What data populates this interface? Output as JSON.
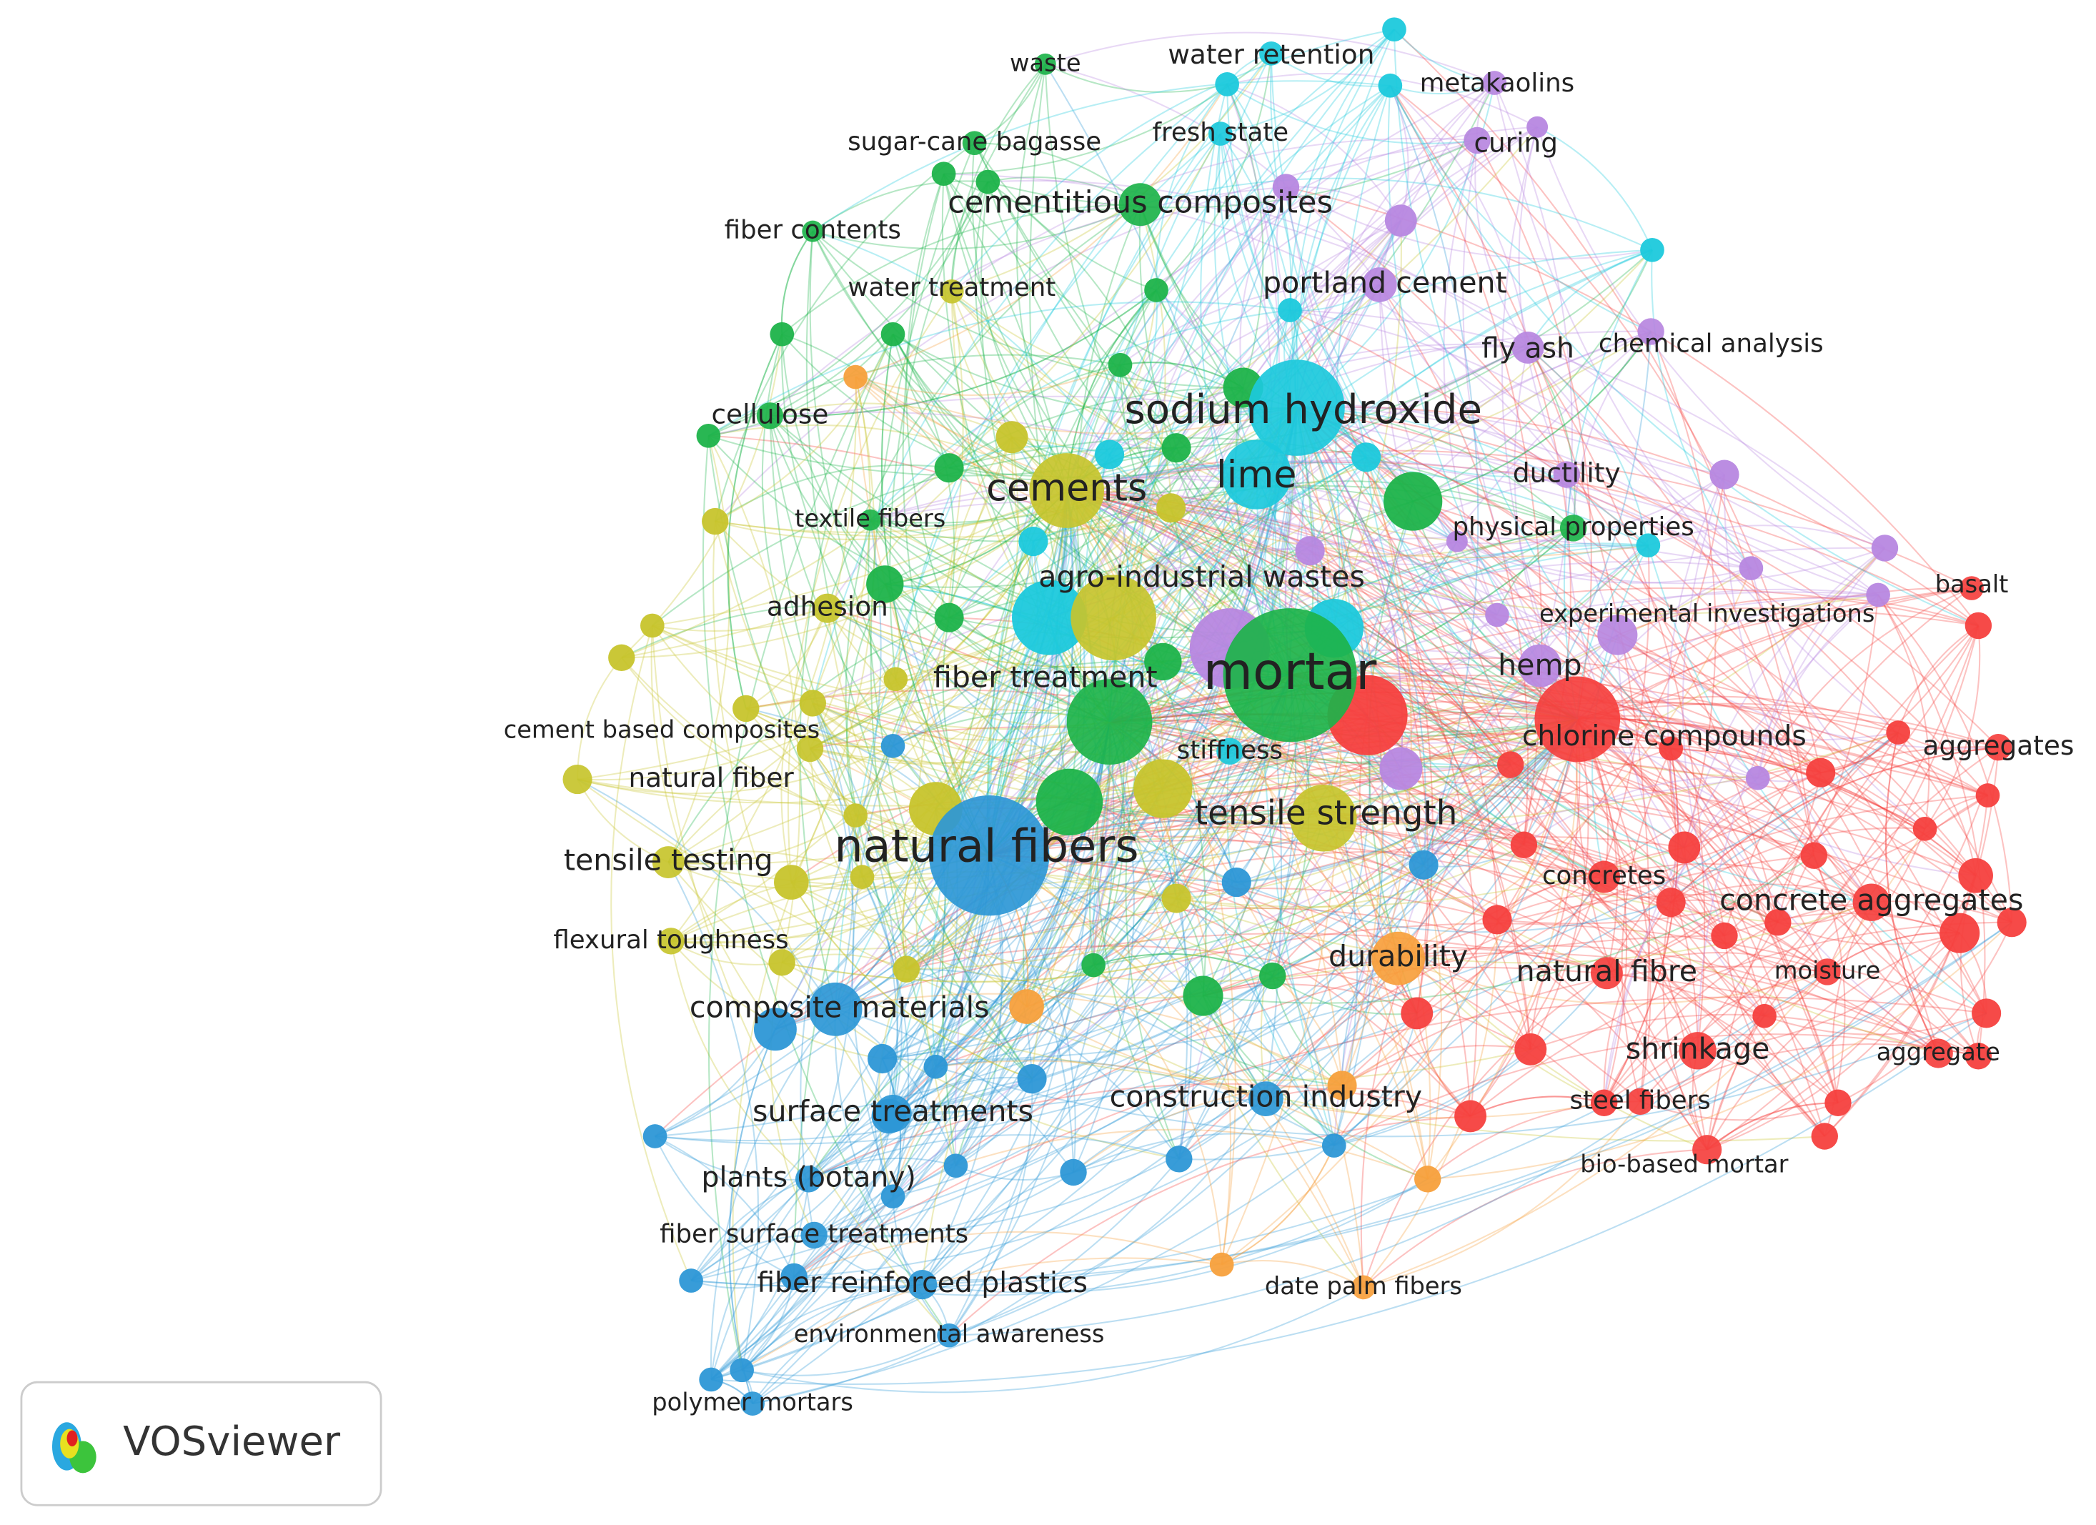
{
  "nodes": [
    {
      "label": "waste",
      "color": "#1db34a"
    },
    {
      "label": "water retention",
      "color": "#1cc9dc"
    },
    {
      "label": "metakaolins",
      "color": "#b787e0"
    },
    {
      "label": "sugar-cane bagasse",
      "color": "#1db34a"
    },
    {
      "label": "fresh state",
      "color": "#1cc9dc"
    },
    {
      "label": "curing",
      "color": "#b787e0"
    },
    {
      "label": "cementitious composites",
      "color": "#1db34a"
    },
    {
      "label": "fiber contents",
      "color": "#1db34a"
    },
    {
      "label": "water treatment",
      "color": "#c7c42c"
    },
    {
      "label": "portland cement",
      "color": "#b787e0"
    },
    {
      "label": "fly ash",
      "color": "#b787e0"
    },
    {
      "label": "chemical analysis",
      "color": "#b787e0"
    },
    {
      "label": "cellulose",
      "color": "#1db34a"
    },
    {
      "label": "sodium hydroxide",
      "color": "#1cc9dc"
    },
    {
      "label": "lime",
      "color": "#1cc9dc"
    },
    {
      "label": "cements",
      "color": "#c7c42c"
    },
    {
      "label": "ductility",
      "color": "#b787e0"
    },
    {
      "label": "textile fibers",
      "color": "#1db34a"
    },
    {
      "label": "physical properties",
      "color": "#1db34a"
    },
    {
      "label": "agro-industrial wastes",
      "color": "#c7c42c"
    },
    {
      "label": "adhesion",
      "color": "#c7c42c"
    },
    {
      "label": "basalt",
      "color": "#f5403e"
    },
    {
      "label": "experimental investigations",
      "color": "#b787e0"
    },
    {
      "label": "mortar",
      "color": "#1db34a"
    },
    {
      "label": "hemp",
      "color": "#b787e0"
    },
    {
      "label": "fiber treatment",
      "color": "#1db34a"
    },
    {
      "label": "chlorine compounds",
      "color": "#f5403e"
    },
    {
      "label": "cement based composites",
      "color": "#c7c42c"
    },
    {
      "label": "aggregates",
      "color": "#f5403e"
    },
    {
      "label": "stiffness",
      "color": "#1cc9dc"
    },
    {
      "label": "natural fiber",
      "color": "#c7c42c"
    },
    {
      "label": "natural fibers",
      "color": "#2d97d6"
    },
    {
      "label": "tensile strength",
      "color": "#c7c42c"
    },
    {
      "label": "tensile testing",
      "color": "#c7c42c"
    },
    {
      "label": "concretes",
      "color": "#f5403e"
    },
    {
      "label": "concrete aggregates",
      "color": "#f5403e"
    },
    {
      "label": "flexural toughness",
      "color": "#c7c42c"
    },
    {
      "label": "durability",
      "color": "#f7a03c"
    },
    {
      "label": "natural fibre",
      "color": "#f5403e"
    },
    {
      "label": "moisture",
      "color": "#f5403e"
    },
    {
      "label": "composite materials",
      "color": "#2d97d6"
    },
    {
      "label": "shrinkage",
      "color": "#f5403e"
    },
    {
      "label": "aggregate",
      "color": "#f5403e"
    },
    {
      "label": "steel fibers",
      "color": "#f5403e"
    },
    {
      "label": "construction industry",
      "color": "#2d97d6"
    },
    {
      "label": "surface treatments",
      "color": "#2d97d6"
    },
    {
      "label": "bio-based mortar",
      "color": "#f5403e"
    },
    {
      "label": "plants (botany)",
      "color": "#2d97d6"
    },
    {
      "label": "fiber surface treatments",
      "color": "#2d97d6"
    },
    {
      "label": "fiber reinforced plastics",
      "color": "#2d97d6"
    },
    {
      "label": "date palm fibers",
      "color": "#f7a03c"
    },
    {
      "label": "environmental awareness",
      "color": "#2d97d6"
    },
    {
      "label": "polymer mortars",
      "color": "#2d97d6"
    }
  ],
  "logo": {
    "text": "VOSviewer"
  }
}
